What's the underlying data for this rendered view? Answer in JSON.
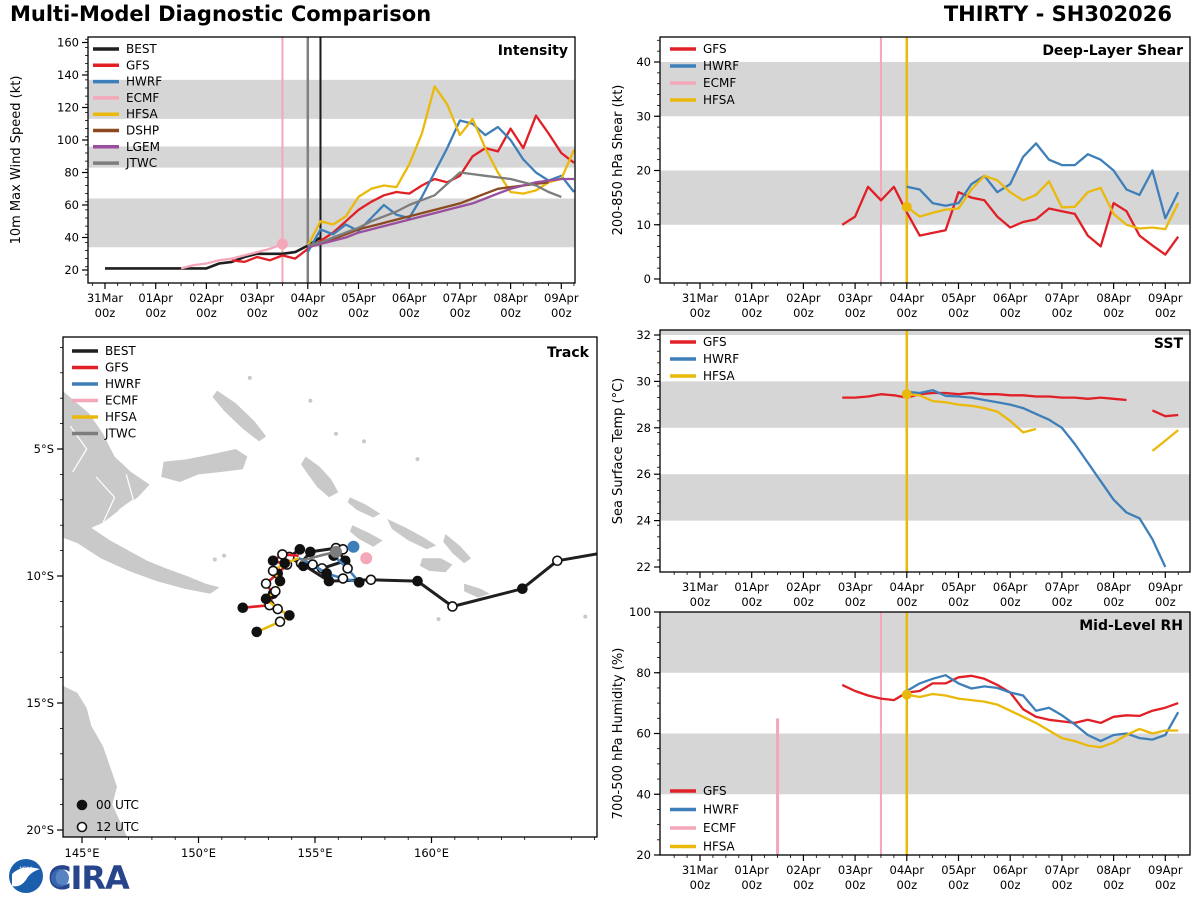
{
  "header": {
    "title_left": "Multi-Model Diagnostic Comparison",
    "title_right": "THIRTY - SH302026"
  },
  "logo": {
    "noaa": "NOAA",
    "cira": "CIRA"
  },
  "time_axis": {
    "days": [
      "31Mar",
      "01Apr",
      "02Apr",
      "03Apr",
      "04Apr",
      "05Apr",
      "06Apr",
      "07Apr",
      "08Apr",
      "09Apr"
    ],
    "hour_label": "00z"
  },
  "model_colors": {
    "BEST": "#1f1f1f",
    "GFS": "#e02026",
    "HWRF": "#3e7fba",
    "ECMF": "#f4a7b9",
    "HFSA": "#eab90c",
    "DSHP": "#8c4a21",
    "LGEM": "#9a4f9e",
    "JTWC": "#7d7d7d"
  },
  "band_color": "#d6d6d6",
  "land_color": "#c9c9c9",
  "chart_data": [
    {
      "id": "intensity",
      "type": "line",
      "title": "Intensity",
      "ylabel": "10m Max Wind Speed (kt)",
      "yticks": [
        20,
        40,
        60,
        80,
        100,
        120,
        140,
        160
      ],
      "ylim": [
        12,
        163
      ],
      "bands": [
        [
          34,
          64
        ],
        [
          83,
          96
        ],
        [
          113,
          137
        ]
      ],
      "legend": [
        "BEST",
        "GFS",
        "HWRF",
        "ECMF",
        "HFSA",
        "DSHP",
        "LGEM",
        "JTWC"
      ],
      "vlines": [
        {
          "t": 3.5,
          "color": "#f4a7b9",
          "w": 2
        },
        {
          "t": 4.0,
          "color": "#808080",
          "w": 2.5
        },
        {
          "t": 4.25,
          "color": "#1a1a1a",
          "w": 2
        }
      ],
      "points": [
        {
          "series": "ECMF",
          "t": 3.5,
          "v": 36,
          "r": 5.5
        }
      ],
      "series": [
        {
          "name": "BEST",
          "start_day": 0.0,
          "step_days": 0.25,
          "values": [
            21,
            21,
            21,
            21,
            21,
            21,
            21,
            21,
            21,
            24,
            25,
            28,
            30,
            30,
            30,
            31,
            35,
            40
          ]
        },
        {
          "name": "GFS",
          "start_day": 2.5,
          "step_days": 0.25,
          "values": [
            26,
            25,
            28,
            26,
            29,
            27,
            33,
            38,
            43,
            50,
            57,
            62,
            66,
            68,
            67,
            72,
            76,
            74,
            78,
            90,
            95,
            93,
            107,
            95,
            115,
            104,
            92,
            86
          ]
        },
        {
          "name": "HWRF",
          "start_day": 4.0,
          "step_days": 0.25,
          "values": [
            31,
            45,
            42,
            48,
            44,
            52,
            60,
            54,
            52,
            65,
            80,
            95,
            112,
            110,
            103,
            108,
            100,
            88,
            80,
            75,
            78,
            68
          ]
        },
        {
          "name": "ECMF",
          "start_day": 1.5,
          "step_days": 0.25,
          "values": [
            21,
            23,
            24,
            26,
            27,
            29,
            31,
            33,
            36
          ]
        },
        {
          "name": "HFSA",
          "start_day": 4.0,
          "step_days": 0.25,
          "values": [
            35,
            50,
            48,
            53,
            65,
            70,
            72,
            71,
            85,
            104,
            133,
            122,
            103,
            113,
            95,
            80,
            68,
            67,
            69,
            74,
            76,
            94
          ]
        },
        {
          "name": "DSHP",
          "start_day": 4.0,
          "step_days": 0.25,
          "values": [
            35,
            37,
            39,
            42,
            45,
            47,
            49,
            51,
            53,
            55,
            57,
            59,
            61,
            64,
            67,
            70,
            71,
            72,
            73,
            74
          ]
        },
        {
          "name": "LGEM",
          "start_day": 4.0,
          "step_days": 0.25,
          "values": [
            34,
            36,
            38,
            40,
            43,
            45,
            47,
            49,
            51,
            53,
            55,
            57,
            59,
            61,
            64,
            67,
            70,
            72,
            74,
            75,
            76,
            76
          ]
        },
        {
          "name": "JTWC",
          "start_day": 4.0,
          "step_days": 0.25,
          "values": [
            35,
            37,
            40,
            43,
            46,
            50,
            53,
            56,
            60,
            63,
            66,
            73,
            80,
            79,
            78,
            77,
            76,
            74,
            72,
            68,
            65
          ]
        }
      ]
    },
    {
      "id": "shear",
      "type": "line",
      "title": "Deep-Layer Shear",
      "ylabel": "200-850 hPa Shear (kt)",
      "yticks": [
        0,
        10,
        20,
        30,
        40
      ],
      "ylim": [
        0,
        44.6
      ],
      "bands": [
        [
          10,
          20
        ],
        [
          30,
          40
        ]
      ],
      "legend": [
        "GFS",
        "HWRF",
        "ECMF",
        "HFSA"
      ],
      "vlines": [
        {
          "t": 3.5,
          "color": "#f4a7b9",
          "w": 2
        },
        {
          "t": 4.0,
          "color": "#eab90c",
          "w": 2.5
        }
      ],
      "points": [
        {
          "series": "HFSA",
          "t": 4.0,
          "v": 13.3,
          "r": 5
        }
      ],
      "series": [
        {
          "name": "GFS",
          "start_day": 2.75,
          "step_days": 0.25,
          "values": [
            10,
            11.5,
            17,
            14.5,
            17,
            12.3,
            8,
            8.5,
            9,
            16,
            15,
            14.5,
            11.5,
            9.5,
            10.5,
            11,
            13,
            12.5,
            12,
            8,
            6,
            14,
            12.5,
            8,
            6.2,
            4.5,
            7.8
          ]
        },
        {
          "name": "HWRF",
          "start_day": 4.0,
          "step_days": 0.25,
          "values": [
            17,
            16.5,
            14,
            13.5,
            14,
            17.5,
            19,
            16,
            17.5,
            22.5,
            25,
            22,
            21,
            21,
            23,
            22,
            20,
            16.5,
            15.5,
            20,
            11.2,
            16
          ]
        },
        {
          "name": "HFSA",
          "start_day": 4.0,
          "step_days": 0.25,
          "values": [
            13.3,
            11.5,
            12.2,
            12.8,
            13,
            16.5,
            19,
            18.2,
            16,
            14.5,
            15.5,
            18,
            13.2,
            13.3,
            16,
            16.8,
            12,
            10,
            9.3,
            9.5,
            9.2,
            14
          ]
        }
      ]
    },
    {
      "id": "sst",
      "type": "line",
      "title": "SST",
      "ylabel": "Sea Surface Temp (°C)",
      "yticks": [
        22,
        24,
        26,
        28,
        30,
        32
      ],
      "ylim": [
        21.8,
        32.2
      ],
      "bands": [
        [
          24,
          26
        ],
        [
          28,
          30
        ],
        [
          32,
          32.5
        ]
      ],
      "legend": [
        "GFS",
        "HWRF",
        "HFSA"
      ],
      "vlines": [
        {
          "t": 4.0,
          "color": "#eab90c",
          "w": 2.5
        }
      ],
      "points": [
        {
          "series": "HFSA",
          "t": 4.0,
          "v": 29.45,
          "r": 5
        }
      ],
      "series": [
        {
          "name": "GFS",
          "start_day": 2.75,
          "step_days": 0.25,
          "values": [
            29.3,
            29.3,
            29.35,
            29.45,
            29.4,
            29.3,
            29.45,
            29.5,
            29.5,
            29.45,
            29.5,
            29.45,
            29.45,
            29.4,
            29.4,
            29.35,
            29.35,
            29.3,
            29.3,
            29.25,
            29.3,
            29.25,
            29.2
          ]
        },
        {
          "name": "GFS",
          "start_day": 8.75,
          "step_days": 0.25,
          "values": [
            28.75,
            28.5,
            28.55
          ]
        },
        {
          "name": "HWRF",
          "start_day": 4.0,
          "step_days": 0.25,
          "values": [
            29.55,
            29.5,
            29.62,
            29.38,
            29.35,
            29.3,
            29.2,
            29.1,
            29.0,
            28.85,
            28.6,
            28.35,
            28.0,
            27.3,
            26.5,
            25.7,
            24.9,
            24.35,
            24.1,
            23.2,
            22.0
          ]
        },
        {
          "name": "HFSA",
          "start_day": 4.0,
          "step_days": 0.25,
          "values": [
            29.45,
            29.4,
            29.15,
            29.1,
            29.0,
            28.95,
            28.85,
            28.7,
            28.3,
            27.8,
            27.95
          ]
        },
        {
          "name": "HFSA",
          "start_day": 8.75,
          "step_days": 0.25,
          "values": [
            27.0,
            27.45,
            27.9
          ]
        }
      ]
    },
    {
      "id": "rh",
      "type": "line",
      "title": "Mid-Level RH",
      "ylabel": "700-500 hPa Humidity (%)",
      "yticks": [
        20,
        40,
        60,
        80,
        100
      ],
      "ylim": [
        20,
        100
      ],
      "bands": [
        [
          40,
          60
        ],
        [
          80,
          100
        ]
      ],
      "legend": [
        "GFS",
        "HWRF",
        "ECMF",
        "HFSA"
      ],
      "vlines": [
        {
          "t": 1.5,
          "color": "#f4a7b9",
          "w": 3,
          "v0": 20,
          "v1": 65
        },
        {
          "t": 3.5,
          "color": "#f4a7b9",
          "w": 2
        },
        {
          "t": 4.0,
          "color": "#eab90c",
          "w": 2.5
        }
      ],
      "points": [
        {
          "series": "HFSA",
          "t": 4.0,
          "v": 72.8,
          "r": 5
        }
      ],
      "series": [
        {
          "name": "GFS",
          "start_day": 2.75,
          "step_days": 0.25,
          "values": [
            76,
            74,
            72.5,
            71.5,
            71,
            73.5,
            74,
            76.5,
            76.5,
            78.5,
            79,
            78,
            76,
            73.5,
            68,
            65.5,
            64.5,
            64,
            63.5,
            64.5,
            63.5,
            65.5,
            66,
            65.8,
            67.5,
            68.5,
            70
          ]
        },
        {
          "name": "HWRF",
          "start_day": 4.0,
          "step_days": 0.25,
          "values": [
            74,
            76.5,
            78,
            79.2,
            76.5,
            74.8,
            75.5,
            75,
            73.5,
            72.5,
            67.5,
            68.5,
            66,
            63,
            59.5,
            57.5,
            59.5,
            60,
            58.5,
            58,
            59.5,
            67
          ]
        },
        {
          "name": "HFSA",
          "start_day": 4.0,
          "step_days": 0.25,
          "values": [
            72.8,
            72,
            73,
            72.5,
            71.5,
            71,
            70.5,
            69.5,
            67.5,
            65.5,
            63.5,
            61,
            58.5,
            57.5,
            56,
            55.5,
            57,
            59.5,
            61.5,
            60,
            61,
            61
          ]
        }
      ]
    },
    {
      "id": "track",
      "type": "map",
      "title": "Track",
      "lon_ticks": [
        "145°E",
        "150°E",
        "155°E",
        "160°E"
      ],
      "lat_ticks": [
        "5°S",
        "10°S",
        "15°S",
        "20°S"
      ],
      "lon_range": [
        144.2,
        167.1
      ],
      "lat_range": [
        0.6,
        20.3
      ],
      "legend": [
        "BEST",
        "GFS",
        "HWRF",
        "ECMF",
        "HFSA",
        "JTWC"
      ],
      "utc_legend": [
        {
          "marker": "filled",
          "label": "00 UTC"
        },
        {
          "marker": "open",
          "label": "12 UTC"
        }
      ],
      "tracks": [
        {
          "name": "BEST",
          "points": [
            [
              167.3,
              9.1
            ],
            [
              165.4,
              9.4
            ],
            [
              163.9,
              10.5
            ],
            [
              160.9,
              11.2
            ],
            [
              159.4,
              10.2
            ],
            [
              157.4,
              10.15
            ],
            [
              155.6,
              10.2
            ],
            [
              154.4,
              9.5
            ],
            [
              154.8,
              9.05
            ],
            [
              155.9,
              8.9
            ],
            [
              156.3,
              9.4
            ],
            [
              155.3,
              9.7
            ],
            [
              154.5,
              9.6
            ],
            [
              153.9,
              9.25
            ],
            [
              154.35,
              8.95
            ]
          ],
          "markers": [
            "none",
            "open",
            "filled",
            "open",
            "filled",
            "open",
            "filled",
            "open",
            "filled",
            "open",
            "filled",
            "open",
            "filled",
            "open",
            "filled"
          ]
        },
        {
          "name": "GFS",
          "points": [
            [
              154.3,
              9.2
            ],
            [
              153.6,
              9.15
            ],
            [
              153.2,
              9.4
            ],
            [
              153.8,
              9.55
            ],
            [
              153.4,
              9.9
            ],
            [
              152.9,
              10.3
            ],
            [
              153.2,
              10.7
            ],
            [
              153.05,
              11.15
            ],
            [
              151.9,
              11.25
            ]
          ],
          "markers": [
            "none",
            "open",
            "filled",
            "open",
            "filled",
            "open",
            "filled",
            "open",
            "filled"
          ]
        },
        {
          "name": "HWRF",
          "points": [
            [
              154.3,
              9.3
            ],
            [
              154.9,
              9.55
            ],
            [
              155.5,
              9.9
            ],
            [
              156.2,
              10.1
            ],
            [
              156.9,
              10.25
            ],
            [
              156.4,
              9.7
            ],
            [
              155.8,
              9.2
            ],
            [
              156.2,
              8.95
            ],
            [
              156.65,
              8.85
            ]
          ],
          "markers": [
            "none",
            "open",
            "filled",
            "open",
            "filled",
            "open",
            "filled",
            "open",
            "self"
          ]
        },
        {
          "name": "ECMF",
          "points": [
            [
              157.2,
              9.3
            ]
          ],
          "markers": [
            "self"
          ]
        },
        {
          "name": "HFSA",
          "points": [
            [
              154.3,
              9.3
            ],
            [
              153.7,
              9.5
            ],
            [
              153.2,
              9.8
            ],
            [
              153.5,
              10.2
            ],
            [
              153.3,
              10.6
            ],
            [
              152.9,
              10.9
            ],
            [
              153.4,
              11.3
            ],
            [
              153.9,
              11.55
            ],
            [
              153.5,
              11.8
            ],
            [
              152.5,
              12.2
            ]
          ],
          "markers": [
            "none",
            "filled",
            "open",
            "filled",
            "open",
            "filled",
            "open",
            "filled",
            "open",
            "filled"
          ]
        },
        {
          "name": "JTWC",
          "points": [
            [
              154.4,
              9.4
            ],
            [
              155.2,
              9.2
            ],
            [
              155.9,
              9.05
            ]
          ],
          "markers": [
            "none",
            "none",
            "self"
          ]
        }
      ]
    }
  ]
}
